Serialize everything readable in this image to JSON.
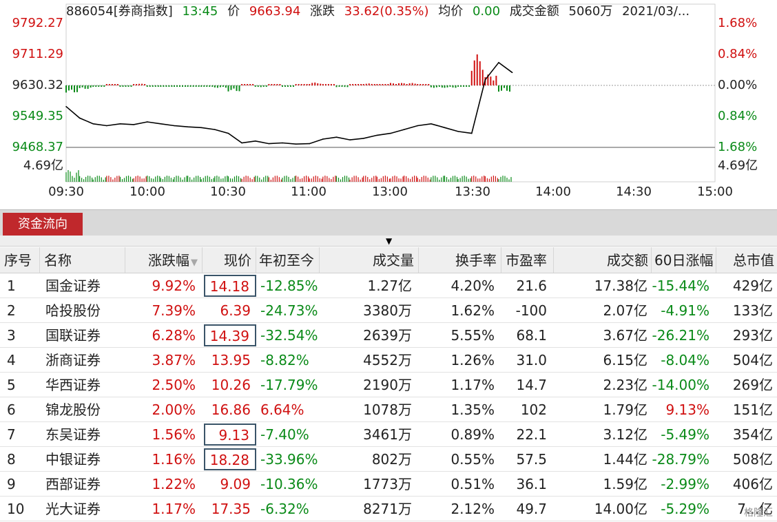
{
  "chart": {
    "header": {
      "code_name": "886054[券商指数]",
      "time": "13:45",
      "price_label": "价",
      "price": "9663.94",
      "change_label": "涨跌",
      "change": "33.62(0.35%)",
      "avg_label": "均价",
      "avg": "0.00",
      "amount_label": "成交金额",
      "amount": "5060万",
      "date": "2021/03/..."
    },
    "y_left": [
      "9792.27",
      "9711.29",
      "9630.32",
      "9549.35",
      "9468.37"
    ],
    "y_right": [
      "1.68%",
      "0.84%",
      "0.00%",
      "0.84%",
      "1.68%"
    ],
    "volume_label_left": "4.69亿",
    "volume_label_right": "4.69亿",
    "x_labels": [
      "09:30",
      "10:00",
      "10:30",
      "11:00",
      "13:00",
      "13:30",
      "14:00",
      "14:30",
      "15:00"
    ],
    "colors": {
      "up": "#d01010",
      "down": "#0a8a18",
      "line": "#000000",
      "grid": "#9a9a9a"
    }
  },
  "chart_data": {
    "type": "line",
    "title": "886054[券商指数]",
    "xlabel": "",
    "ylabel": "",
    "ylim": [
      9468.37,
      9792.27
    ],
    "prev_close": 9630.32,
    "x": [
      "09:30",
      "09:35",
      "09:40",
      "09:45",
      "09:50",
      "09:55",
      "10:00",
      "10:05",
      "10:10",
      "10:15",
      "10:20",
      "10:25",
      "10:30",
      "10:35",
      "10:40",
      "10:45",
      "10:50",
      "10:55",
      "11:00",
      "11:05",
      "11:10",
      "11:15",
      "11:20",
      "11:25",
      "11:30",
      "13:05",
      "13:10",
      "13:15",
      "13:20",
      "13:25",
      "13:30",
      "13:35",
      "13:40",
      "13:45"
    ],
    "series": [
      {
        "values": [
          9575,
          9545,
          9530,
          9525,
          9530,
          9528,
          9535,
          9530,
          9525,
          9522,
          9520,
          9515,
          9505,
          9480,
          9485,
          9478,
          9480,
          9477,
          9478,
          9490,
          9495,
          9488,
          9492,
          9500,
          9505,
          9515,
          9525,
          9530,
          9520,
          9510,
          9505,
          9645,
          9690,
          9664
        ]
      }
    ]
  },
  "fund_flow": {
    "tab_label": "资金流向",
    "columns": [
      "序号",
      "名称",
      "涨跌幅",
      "现价",
      "年初至今",
      "成交量",
      "换手率",
      "市盈率",
      "成交额",
      "60日涨幅",
      "总市值"
    ],
    "rows": [
      {
        "no": "1",
        "name": "国金证券",
        "pct": "9.92%",
        "price": "14.18",
        "ytd": "-12.85%",
        "vol": "1.27亿",
        "turnover": "4.20%",
        "pe": "21.6",
        "amount": "17.38亿",
        "d60": "-15.44%",
        "mcap": "429亿"
      },
      {
        "no": "2",
        "name": "哈投股份",
        "pct": "7.39%",
        "price": "6.39",
        "ytd": "-24.73%",
        "vol": "3380万",
        "turnover": "1.62%",
        "pe": "-100",
        "amount": "2.07亿",
        "d60": "-4.91%",
        "mcap": "133亿"
      },
      {
        "no": "3",
        "name": "国联证券",
        "pct": "6.28%",
        "price": "14.39",
        "ytd": "-32.54%",
        "vol": "2639万",
        "turnover": "5.55%",
        "pe": "68.1",
        "amount": "3.67亿",
        "d60": "-26.21%",
        "mcap": "293亿"
      },
      {
        "no": "4",
        "name": "浙商证券",
        "pct": "3.87%",
        "price": "13.95",
        "ytd": "-8.82%",
        "vol": "4552万",
        "turnover": "1.26%",
        "pe": "31.0",
        "amount": "6.15亿",
        "d60": "-8.04%",
        "mcap": "504亿"
      },
      {
        "no": "5",
        "name": "华西证券",
        "pct": "2.50%",
        "price": "10.26",
        "ytd": "-17.79%",
        "vol": "2190万",
        "turnover": "1.17%",
        "pe": "14.7",
        "amount": "2.23亿",
        "d60": "-14.00%",
        "mcap": "269亿"
      },
      {
        "no": "6",
        "name": "锦龙股份",
        "pct": "2.00%",
        "price": "16.86",
        "ytd": "6.64%",
        "vol": "1078万",
        "turnover": "1.35%",
        "pe": "102",
        "amount": "1.79亿",
        "d60": "9.13%",
        "mcap": "151亿"
      },
      {
        "no": "7",
        "name": "东吴证券",
        "pct": "1.56%",
        "price": "9.13",
        "ytd": "-7.40%",
        "vol": "3461万",
        "turnover": "0.89%",
        "pe": "22.1",
        "amount": "3.12亿",
        "d60": "-5.49%",
        "mcap": "354亿"
      },
      {
        "no": "8",
        "name": "中银证券",
        "pct": "1.16%",
        "price": "18.28",
        "ytd": "-33.96%",
        "vol": "802万",
        "turnover": "0.55%",
        "pe": "57.5",
        "amount": "1.44亿",
        "d60": "-28.79%",
        "mcap": "508亿"
      },
      {
        "no": "9",
        "name": "西部证券",
        "pct": "1.22%",
        "price": "9.09",
        "ytd": "-10.36%",
        "vol": "1773万",
        "turnover": "0.51%",
        "pe": "36.1",
        "amount": "1.59亿",
        "d60": "-2.99%",
        "mcap": "406亿"
      },
      {
        "no": "10",
        "name": "光大证券",
        "pct": "1.17%",
        "price": "17.35",
        "ytd": "-6.32%",
        "vol": "8271万",
        "turnover": "2.12%",
        "pe": "49.7",
        "amount": "14.00亿",
        "d60": "-5.29%",
        "mcap": "7...亿"
      }
    ],
    "boxed_rows": [
      "1",
      "3",
      "7",
      "8"
    ]
  },
  "watermark": "格隆汇"
}
